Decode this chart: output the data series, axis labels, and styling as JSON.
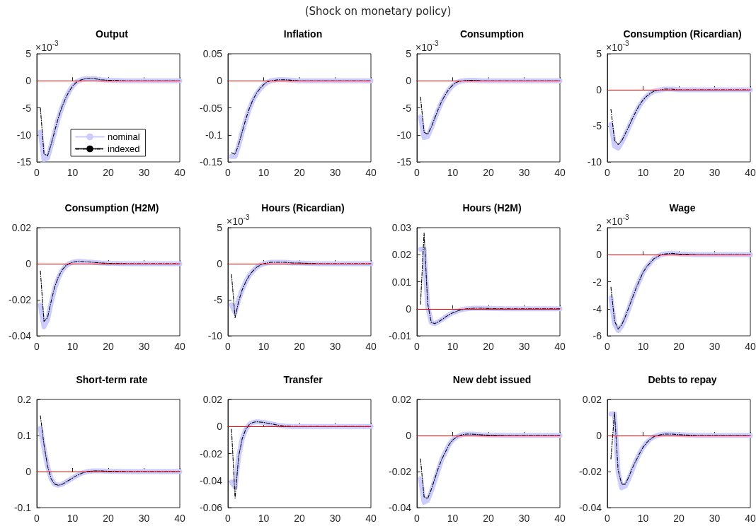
{
  "chart_data": [
    {
      "type": "line",
      "title": "Output",
      "ylabel": "×10$^{-3}$",
      "annotations": [
        "(Shock on monetary policy)"
      ],
      "legend": "bottom",
      "x": [
        1,
        2,
        3,
        4,
        5,
        6,
        7,
        8,
        9,
        10,
        11,
        12,
        13,
        14,
        15,
        16,
        18,
        20,
        25,
        30,
        35,
        40
      ],
      "xlim": [
        0,
        40
      ],
      "xticks": [
        0,
        10,
        20,
        30,
        40
      ],
      "ylim": [
        -15,
        5
      ],
      "yticks": [
        -15,
        -10,
        -5,
        0,
        5
      ],
      "ref_lines": [
        {
          "axis": "y",
          "value": 0,
          "color": "#ff0000"
        }
      ],
      "series": [
        {
          "name": "nominal",
          "color": "#ccccff",
          "line_style": "solid",
          "values": [
            -9.5,
            -14.5,
            -14.3,
            -12,
            -9.5,
            -7,
            -5,
            -3.3,
            -2,
            -1,
            -0.3,
            0.1,
            0.3,
            0.4,
            0.4,
            0.4,
            0.2,
            0.1,
            0,
            0,
            0,
            0
          ]
        },
        {
          "name": "indexed",
          "color": "#000000",
          "line_style": "dashed",
          "values": [
            -5,
            -13.5,
            -13.9,
            -11.8,
            -9.3,
            -6.9,
            -4.9,
            -3.3,
            -2,
            -1,
            -0.3,
            0.1,
            0.3,
            0.4,
            0.4,
            0.4,
            0.2,
            0.1,
            0,
            0,
            0,
            0
          ]
        }
      ]
    },
    {
      "type": "line",
      "title": "Inflation",
      "x": [
        1,
        2,
        3,
        4,
        5,
        6,
        7,
        8,
        9,
        10,
        11,
        12,
        13,
        14,
        15,
        16,
        18,
        20,
        25,
        30,
        35,
        40
      ],
      "xlim": [
        0,
        40
      ],
      "xticks": [
        0,
        10,
        20,
        30,
        40
      ],
      "ylim": [
        -0.15,
        0.05
      ],
      "yticks": [
        -0.15,
        -0.1,
        -0.05,
        0,
        0.05
      ],
      "ref_lines": [
        {
          "axis": "y",
          "value": 0,
          "color": "#ff0000"
        }
      ],
      "series": [
        {
          "color": "#ccccff",
          "line_style": "solid",
          "values": [
            -0.14,
            -0.14,
            -0.12,
            -0.095,
            -0.072,
            -0.052,
            -0.036,
            -0.024,
            -0.015,
            -0.008,
            -0.003,
            0,
            0.001,
            0.002,
            0.002,
            0.002,
            0.001,
            0,
            0,
            0,
            0,
            0
          ]
        },
        {
          "color": "#000000",
          "line_style": "dashed",
          "values": [
            -0.133,
            -0.136,
            -0.118,
            -0.094,
            -0.071,
            -0.051,
            -0.035,
            -0.023,
            -0.014,
            -0.007,
            -0.002,
            0,
            0.001,
            0.002,
            0.002,
            0.002,
            0.001,
            0,
            0,
            0,
            0,
            0
          ]
        }
      ]
    },
    {
      "type": "line",
      "title": "Consumption",
      "ylabel": "×10$^{-3}$",
      "x": [
        1,
        2,
        3,
        4,
        5,
        6,
        7,
        8,
        9,
        10,
        11,
        12,
        13,
        14,
        15,
        16,
        18,
        20,
        25,
        30,
        35,
        40
      ],
      "xlim": [
        0,
        40
      ],
      "xticks": [
        0,
        10,
        20,
        30,
        40
      ],
      "ylim": [
        -15,
        5
      ],
      "yticks": [
        -15,
        -10,
        -5,
        0,
        5
      ],
      "ref_lines": [
        {
          "axis": "y",
          "value": 0,
          "color": "#ff0000"
        }
      ],
      "series": [
        {
          "color": "#ccccff",
          "line_style": "solid",
          "values": [
            -6.7,
            -10.5,
            -10.3,
            -8.7,
            -7,
            -5.3,
            -3.8,
            -2.6,
            -1.6,
            -0.9,
            -0.4,
            -0.1,
            0,
            0.1,
            0.1,
            0.1,
            0,
            0,
            0,
            0,
            0,
            0
          ]
        },
        {
          "color": "#000000",
          "line_style": "dashed",
          "values": [
            -3,
            -9.5,
            -9.9,
            -8.6,
            -6.9,
            -5.2,
            -3.7,
            -2.5,
            -1.5,
            -0.8,
            -0.3,
            -0.1,
            0,
            0.1,
            0.1,
            0.1,
            0,
            0,
            0,
            0,
            0,
            0
          ]
        }
      ]
    },
    {
      "type": "line",
      "title": "Consumption (Ricardian)",
      "ylabel": "×10$^{-3}$",
      "x": [
        1,
        2,
        3,
        4,
        5,
        6,
        7,
        8,
        9,
        10,
        11,
        12,
        13,
        14,
        15,
        16,
        18,
        20,
        25,
        30,
        35,
        40
      ],
      "xlim": [
        0,
        40
      ],
      "xticks": [
        0,
        10,
        20,
        30,
        40
      ],
      "ylim": [
        -10,
        5
      ],
      "yticks": [
        -10,
        -5,
        0,
        5
      ],
      "ref_lines": [
        {
          "axis": "y",
          "value": 0,
          "color": "#ff0000"
        }
      ],
      "series": [
        {
          "color": "#ccccff",
          "line_style": "solid",
          "values": [
            -4.8,
            -7.8,
            -8.1,
            -7.3,
            -6.3,
            -5.2,
            -4.1,
            -3.1,
            -2.2,
            -1.5,
            -0.9,
            -0.5,
            -0.2,
            -0.1,
            0,
            0.1,
            0.1,
            0,
            0,
            0,
            0,
            0
          ]
        },
        {
          "color": "#000000",
          "line_style": "dashed",
          "values": [
            -2.7,
            -7,
            -7.6,
            -7.1,
            -6.1,
            -5.1,
            -4,
            -3,
            -2.1,
            -1.4,
            -0.9,
            -0.5,
            -0.2,
            -0.1,
            0,
            0.1,
            0.1,
            0,
            0,
            0,
            0,
            0
          ]
        }
      ]
    },
    {
      "type": "line",
      "title": "Consumption (H2M)",
      "x": [
        1,
        2,
        3,
        4,
        5,
        6,
        7,
        8,
        9,
        10,
        11,
        12,
        13,
        14,
        15,
        16,
        18,
        20,
        25,
        30,
        35,
        40
      ],
      "xlim": [
        0,
        40
      ],
      "xticks": [
        0,
        10,
        20,
        30,
        40
      ],
      "ylim": [
        -0.04,
        0.02
      ],
      "yticks": [
        -0.04,
        -0.02,
        0,
        0.02
      ],
      "ref_lines": [
        {
          "axis": "y",
          "value": 0,
          "color": "#ff0000"
        }
      ],
      "series": [
        {
          "color": "#ccccff",
          "line_style": "solid",
          "values": [
            -0.023,
            -0.035,
            -0.031,
            -0.022,
            -0.014,
            -0.008,
            -0.004,
            -0.0015,
            0,
            0.0008,
            0.0012,
            0.0013,
            0.0012,
            0.001,
            0.0009,
            0.0007,
            0.0004,
            0.0002,
            0,
            0,
            0,
            0
          ]
        },
        {
          "color": "#000000",
          "line_style": "dashed",
          "values": [
            -0.004,
            -0.032,
            -0.03,
            -0.021,
            -0.013,
            -0.0075,
            -0.0037,
            -0.0013,
            0,
            0.0008,
            0.0012,
            0.0013,
            0.0012,
            0.001,
            0.0009,
            0.0007,
            0.0004,
            0.0002,
            0,
            0,
            0,
            0
          ]
        }
      ]
    },
    {
      "type": "line",
      "title": "Hours (Ricardian)",
      "ylabel": "×10$^{-3}$",
      "x": [
        1,
        2,
        3,
        4,
        5,
        6,
        7,
        8,
        9,
        10,
        11,
        12,
        13,
        14,
        15,
        16,
        18,
        20,
        25,
        30,
        35,
        40
      ],
      "xlim": [
        0,
        40
      ],
      "xticks": [
        0,
        10,
        20,
        30,
        40
      ],
      "ylim": [
        -10,
        5
      ],
      "yticks": [
        -10,
        -5,
        0,
        5
      ],
      "ref_lines": [
        {
          "axis": "y",
          "value": 0,
          "color": "#ff0000"
        }
      ],
      "series": [
        {
          "color": "#ccccff",
          "line_style": "solid",
          "values": [
            -5.7,
            -6.8,
            -5,
            -3.6,
            -2.5,
            -1.6,
            -1,
            -0.5,
            -0.2,
            0,
            0.1,
            0.2,
            0.2,
            0.2,
            0.2,
            0.2,
            0.1,
            0.1,
            0,
            0,
            0,
            0
          ]
        },
        {
          "color": "#000000",
          "line_style": "dashed",
          "values": [
            -1.5,
            -7.5,
            -5.2,
            -3.6,
            -2.5,
            -1.6,
            -1,
            -0.5,
            -0.2,
            0,
            0.1,
            0.2,
            0.2,
            0.2,
            0.2,
            0.2,
            0.1,
            0.1,
            0,
            0,
            0,
            0
          ]
        }
      ]
    },
    {
      "type": "line",
      "title": "Hours (H2M)",
      "x": [
        1,
        2,
        3,
        4,
        5,
        6,
        7,
        8,
        9,
        10,
        11,
        12,
        13,
        14,
        15,
        16,
        18,
        20,
        25,
        30,
        35,
        40
      ],
      "xlim": [
        0,
        40
      ],
      "xticks": [
        0,
        10,
        20,
        30,
        40
      ],
      "ylim": [
        -0.01,
        0.03
      ],
      "yticks": [
        -0.01,
        0,
        0.01,
        0.02,
        0.03
      ],
      "ref_lines": [
        {
          "axis": "y",
          "value": 0,
          "color": "#ff0000"
        }
      ],
      "series": [
        {
          "color": "#ccccff",
          "line_style": "solid",
          "values": [
            0.022,
            0.022,
            0.001,
            -0.005,
            -0.0055,
            -0.0048,
            -0.004,
            -0.003,
            -0.0022,
            -0.0015,
            -0.001,
            -0.0005,
            -0.0002,
            0,
            0.0001,
            0.0002,
            0.0002,
            0.0001,
            0,
            0,
            0,
            0
          ]
        },
        {
          "color": "#000000",
          "line_style": "dashed",
          "values": [
            0.0017,
            0.028,
            0.002,
            -0.005,
            -0.0055,
            -0.0048,
            -0.004,
            -0.003,
            -0.0022,
            -0.0015,
            -0.001,
            -0.0005,
            -0.0002,
            0,
            0.0001,
            0.0002,
            0.0002,
            0.0001,
            0,
            0,
            0,
            0
          ]
        }
      ]
    },
    {
      "type": "line",
      "title": "Wage",
      "ylabel": "×10$^{-3}$",
      "x": [
        1,
        2,
        3,
        4,
        5,
        6,
        7,
        8,
        9,
        10,
        11,
        12,
        13,
        14,
        15,
        16,
        18,
        20,
        25,
        30,
        35,
        40
      ],
      "xlim": [
        0,
        40
      ],
      "xticks": [
        0,
        10,
        20,
        30,
        40
      ],
      "ylim": [
        -6,
        2
      ],
      "yticks": [
        -6,
        -4,
        -2,
        0,
        2
      ],
      "ref_lines": [
        {
          "axis": "y",
          "value": 0,
          "color": "#ff0000"
        }
      ],
      "series": [
        {
          "color": "#ccccff",
          "line_style": "solid",
          "values": [
            -3.2,
            -5.1,
            -5.6,
            -5.3,
            -4.7,
            -4,
            -3.2,
            -2.5,
            -1.9,
            -1.3,
            -0.9,
            -0.6,
            -0.3,
            -0.15,
            0,
            0.05,
            0.1,
            0.05,
            0,
            0,
            0,
            0
          ]
        },
        {
          "color": "#000000",
          "line_style": "dashed",
          "values": [
            -2.4,
            -4.9,
            -5.5,
            -5.2,
            -4.6,
            -3.9,
            -3.2,
            -2.5,
            -1.9,
            -1.3,
            -0.9,
            -0.6,
            -0.3,
            -0.15,
            0,
            0.05,
            0.1,
            0.05,
            0,
            0,
            0,
            0
          ]
        }
      ]
    },
    {
      "type": "line",
      "title": "Short-term rate",
      "x": [
        1,
        2,
        3,
        4,
        5,
        6,
        7,
        8,
        9,
        10,
        11,
        12,
        13,
        14,
        15,
        16,
        18,
        20,
        25,
        30,
        35,
        40
      ],
      "xlim": [
        0,
        40
      ],
      "xticks": [
        0,
        10,
        20,
        30,
        40
      ],
      "ylim": [
        -0.1,
        0.2
      ],
      "yticks": [
        -0.1,
        0,
        0.1,
        0.2
      ],
      "ref_lines": [
        {
          "axis": "y",
          "value": 0,
          "color": "#ff0000"
        }
      ],
      "series": [
        {
          "color": "#ccccff",
          "line_style": "solid",
          "values": [
            0.12,
            0.065,
            0.015,
            -0.02,
            -0.035,
            -0.038,
            -0.036,
            -0.03,
            -0.024,
            -0.018,
            -0.012,
            -0.007,
            -0.003,
            0,
            0.001,
            0.002,
            0.002,
            0.001,
            0,
            0,
            0,
            0
          ]
        },
        {
          "color": "#000000",
          "line_style": "dashed",
          "values": [
            0.155,
            0.075,
            0.015,
            -0.02,
            -0.035,
            -0.038,
            -0.036,
            -0.03,
            -0.024,
            -0.018,
            -0.012,
            -0.007,
            -0.003,
            0,
            0.001,
            0.002,
            0.002,
            0.001,
            0,
            0,
            0,
            0
          ]
        }
      ]
    },
    {
      "type": "line",
      "title": "Transfer",
      "x": [
        1,
        2,
        3,
        4,
        5,
        6,
        7,
        8,
        9,
        10,
        11,
        12,
        13,
        14,
        15,
        16,
        18,
        20,
        25,
        30,
        35,
        40
      ],
      "xlim": [
        0,
        40
      ],
      "xticks": [
        0,
        10,
        20,
        30,
        40
      ],
      "ylim": [
        -0.06,
        0.02
      ],
      "yticks": [
        -0.06,
        -0.04,
        -0.02,
        0,
        0.02
      ],
      "ref_lines": [
        {
          "axis": "y",
          "value": 0,
          "color": "#ff0000"
        }
      ],
      "series": [
        {
          "color": "#ccccff",
          "line_style": "solid",
          "values": [
            -0.041,
            -0.045,
            -0.022,
            -0.009,
            -0.002,
            0.0015,
            0.003,
            0.0035,
            0.0033,
            0.003,
            0.0025,
            0.002,
            0.0015,
            0.001,
            0.0006,
            0.0003,
            0,
            0,
            0,
            0,
            0,
            0
          ]
        },
        {
          "color": "#000000",
          "line_style": "dashed",
          "values": [
            -0.002,
            -0.053,
            -0.022,
            -0.009,
            -0.002,
            0.0015,
            0.003,
            0.0035,
            0.0033,
            0.003,
            0.0025,
            0.002,
            0.0015,
            0.001,
            0.0006,
            0.0003,
            0,
            0,
            0,
            0,
            0,
            0
          ]
        }
      ]
    },
    {
      "type": "line",
      "title": "New debt issued",
      "x": [
        1,
        2,
        3,
        4,
        5,
        6,
        7,
        8,
        9,
        10,
        11,
        12,
        13,
        14,
        15,
        16,
        18,
        20,
        25,
        30,
        35,
        40
      ],
      "xlim": [
        0,
        40
      ],
      "xticks": [
        0,
        10,
        20,
        30,
        40
      ],
      "ylim": [
        -0.04,
        0.02
      ],
      "yticks": [
        -0.04,
        -0.02,
        0,
        0.02
      ],
      "ref_lines": [
        {
          "axis": "y",
          "value": 0,
          "color": "#ff0000"
        }
      ],
      "series": [
        {
          "color": "#ccccff",
          "line_style": "solid",
          "values": [
            -0.024,
            -0.037,
            -0.036,
            -0.031,
            -0.025,
            -0.019,
            -0.013,
            -0.009,
            -0.005,
            -0.0025,
            -0.001,
            0,
            0.0006,
            0.0008,
            0.0008,
            0.0007,
            0.0004,
            0.0002,
            0,
            0,
            0,
            0
          ]
        },
        {
          "color": "#000000",
          "line_style": "dashed",
          "values": [
            -0.013,
            -0.034,
            -0.035,
            -0.03,
            -0.024,
            -0.018,
            -0.013,
            -0.009,
            -0.005,
            -0.0025,
            -0.001,
            0,
            0.0006,
            0.0008,
            0.0008,
            0.0007,
            0.0004,
            0.0002,
            0,
            0,
            0,
            0
          ]
        }
      ]
    },
    {
      "type": "line",
      "title": "Debts to repay",
      "x": [
        1,
        2,
        3,
        4,
        5,
        6,
        7,
        8,
        9,
        10,
        11,
        12,
        13,
        14,
        15,
        16,
        18,
        20,
        25,
        30,
        35,
        40
      ],
      "xlim": [
        0,
        40
      ],
      "xticks": [
        0,
        10,
        20,
        30,
        40
      ],
      "ylim": [
        -0.04,
        0.02
      ],
      "yticks": [
        -0.04,
        -0.02,
        0,
        0.02
      ],
      "ref_lines": [
        {
          "axis": "y",
          "value": 0,
          "color": "#ff0000"
        }
      ],
      "series": [
        {
          "color": "#ccccff",
          "line_style": "solid",
          "values": [
            0.012,
            0.012,
            -0.02,
            -0.029,
            -0.028,
            -0.024,
            -0.019,
            -0.014,
            -0.01,
            -0.0065,
            -0.004,
            -0.002,
            -0.0007,
            0,
            0.0005,
            0.0008,
            0.0008,
            0.0005,
            0,
            0,
            0,
            0
          ]
        },
        {
          "color": "#000000",
          "line_style": "dashed",
          "values": [
            -0.013,
            0.013,
            -0.019,
            -0.027,
            -0.027,
            -0.023,
            -0.018,
            -0.014,
            -0.01,
            -0.0065,
            -0.004,
            -0.002,
            -0.0007,
            0,
            0.0005,
            0.0008,
            0.0008,
            0.0005,
            0,
            0,
            0,
            0
          ]
        }
      ]
    }
  ]
}
